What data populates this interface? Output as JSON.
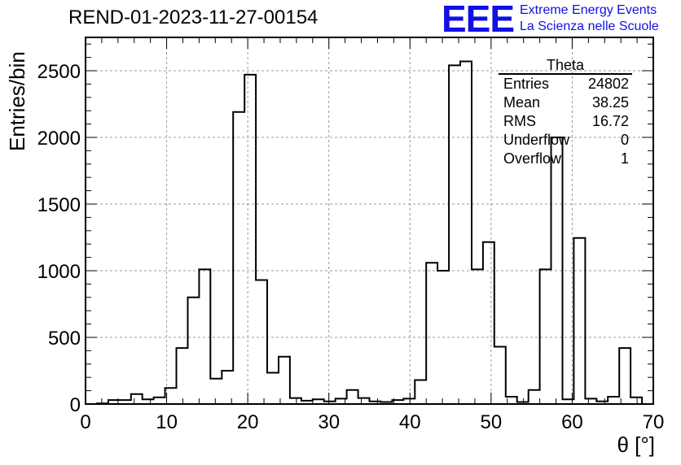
{
  "header": {
    "title": "REND-01-2023-11-27-00154",
    "logo_text": "EEE",
    "logo_line1": "Extreme Energy Events",
    "logo_line2": "La Scienza nelle Scuole"
  },
  "stats_box": {
    "title": "Theta",
    "rows": [
      {
        "label": "Entries",
        "value": "24802"
      },
      {
        "label": "Mean",
        "value": "38.25"
      },
      {
        "label": "RMS",
        "value": "16.72"
      },
      {
        "label": "Underflow",
        "value": "0"
      },
      {
        "label": "Overflow",
        "value": "1"
      }
    ]
  },
  "chart_data": {
    "type": "bar",
    "title": "REND-01-2023-11-27-00154",
    "xlabel": "θ [°]",
    "ylabel": "Entries/bin",
    "xlim": [
      0,
      70
    ],
    "ylim": [
      0,
      2750
    ],
    "xticks": [
      0,
      10,
      20,
      30,
      40,
      50,
      60,
      70
    ],
    "yticks": [
      0,
      500,
      1000,
      1500,
      2000,
      2500
    ],
    "grid": true,
    "legend": "top-right",
    "bin_width": 1.4,
    "bin_edges_start": 1.4,
    "values": [
      5,
      30,
      30,
      75,
      35,
      50,
      120,
      420,
      800,
      1010,
      190,
      250,
      2190,
      2470,
      930,
      235,
      355,
      45,
      25,
      35,
      20,
      40,
      105,
      45,
      20,
      15,
      30,
      40,
      180,
      1060,
      1000,
      2540,
      2570,
      1010,
      1215,
      430,
      55,
      15,
      105,
      1010,
      2000,
      35,
      1245,
      40,
      20,
      55,
      420,
      50
    ]
  }
}
